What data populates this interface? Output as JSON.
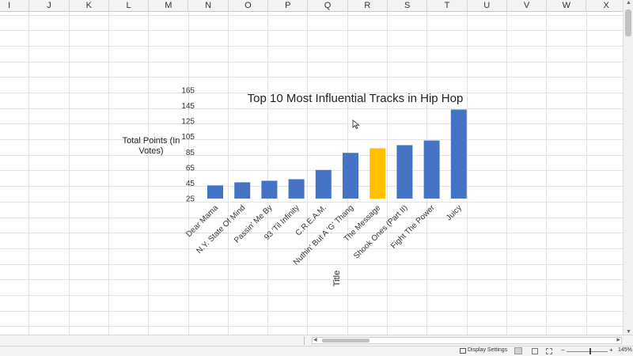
{
  "columns": [
    "I",
    "J",
    "K",
    "L",
    "M",
    "N",
    "O",
    "P",
    "Q",
    "R",
    "S",
    "T",
    "U",
    "V",
    "W",
    "X"
  ],
  "status": {
    "display_settings": "Display Settings",
    "zoom_minus": "−",
    "zoom_plus": "+",
    "zoom_level": "145%"
  },
  "chart_data": {
    "type": "bar",
    "title": "Top 10 Most Influential Tracks in Hip Hop",
    "xlabel": "Title",
    "ylabel": "Total Points (In Votes)",
    "ylabel_lines": [
      "Total Points (In",
      "Votes)"
    ],
    "ylim": [
      25,
      165
    ],
    "yticks": [
      165,
      145,
      125,
      105,
      85,
      65,
      45,
      25
    ],
    "grid": false,
    "categories": [
      "Dear Mama",
      "N.Y. State Of Mind",
      "Passin' Me By",
      "93 'Til Infinity",
      "C.R.E.A.M.",
      "Nuthin' But A 'G' Thang",
      "The Message",
      "Shook Ones (Part II)",
      "Fight The Power",
      "Juicy"
    ],
    "values": [
      42,
      46,
      48,
      50,
      62,
      84,
      90,
      94,
      100,
      140
    ],
    "highlight_category": "The Message",
    "colors": {
      "bar": "#4472c4",
      "highlight": "#ffc000"
    }
  }
}
